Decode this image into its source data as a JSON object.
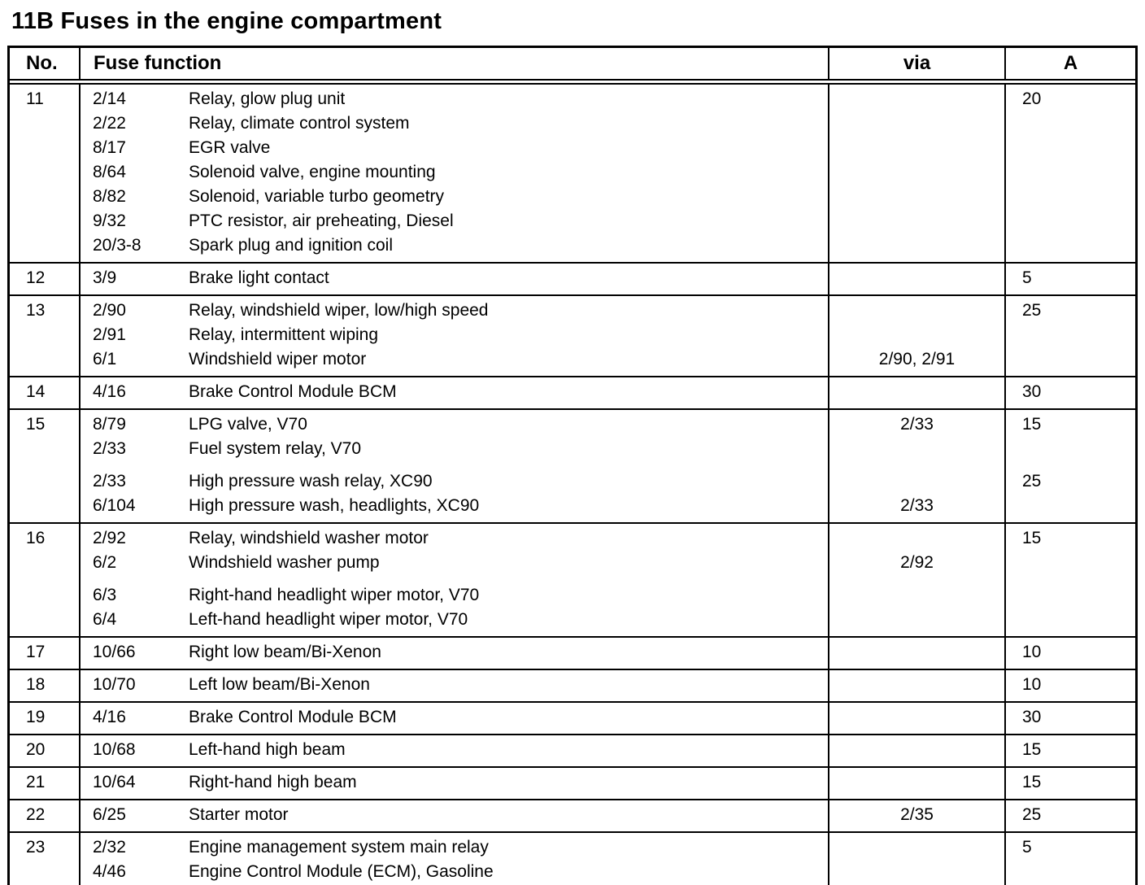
{
  "page": {
    "title": "11B Fuses in the engine compartment"
  },
  "table": {
    "headers": {
      "no": "No.",
      "function": "Fuse function",
      "via": "via",
      "amp": "A"
    },
    "rows": [
      {
        "no": "11",
        "entries": [
          {
            "code": "2/14",
            "desc": "Relay, glow plug unit",
            "via": "",
            "amp": "20"
          },
          {
            "code": "2/22",
            "desc": "Relay, climate control system",
            "via": "",
            "amp": ""
          },
          {
            "code": "8/17",
            "desc": "EGR valve",
            "via": "",
            "amp": ""
          },
          {
            "code": "8/64",
            "desc": "Solenoid valve, engine mounting",
            "via": "",
            "amp": ""
          },
          {
            "code": "8/82",
            "desc": "Solenoid, variable turbo geometry",
            "via": "",
            "amp": ""
          },
          {
            "code": "9/32",
            "desc": "PTC resistor, air preheating, Diesel",
            "via": "",
            "amp": ""
          },
          {
            "code": "20/3-8",
            "desc": "Spark plug and ignition coil",
            "via": "",
            "amp": ""
          }
        ]
      },
      {
        "no": "12",
        "entries": [
          {
            "code": "3/9",
            "desc": "Brake light contact",
            "via": "",
            "amp": "5"
          }
        ]
      },
      {
        "no": "13",
        "entries": [
          {
            "code": "2/90",
            "desc": "Relay, windshield wiper, low/high speed",
            "via": "",
            "amp": "25"
          },
          {
            "code": "2/91",
            "desc": "Relay, intermittent wiping",
            "via": "",
            "amp": ""
          },
          {
            "code": "6/1",
            "desc": "Windshield wiper motor",
            "via": "2/90, 2/91",
            "amp": ""
          }
        ]
      },
      {
        "no": "14",
        "entries": [
          {
            "code": "4/16",
            "desc": "Brake Control Module BCM",
            "via": "",
            "amp": "30"
          }
        ]
      },
      {
        "no": "15",
        "entries": [
          {
            "code": "8/79",
            "desc": "LPG valve, V70",
            "via": "2/33",
            "amp": "15"
          },
          {
            "code": "2/33",
            "desc": "Fuel system relay, V70",
            "via": "",
            "amp": ""
          },
          {
            "code": "2/33",
            "desc": "High pressure wash relay, XC90",
            "via": "",
            "amp": "25",
            "gap": true
          },
          {
            "code": "6/104",
            "desc": "High pressure wash, headlights, XC90",
            "via": "2/33",
            "amp": ""
          }
        ]
      },
      {
        "no": "16",
        "entries": [
          {
            "code": "2/92",
            "desc": "Relay, windshield washer motor",
            "via": "",
            "amp": "15"
          },
          {
            "code": "6/2",
            "desc": "Windshield washer pump",
            "via": "2/92",
            "amp": ""
          },
          {
            "code": "6/3",
            "desc": "Right-hand headlight wiper motor, V70",
            "via": "",
            "amp": "",
            "gap": true
          },
          {
            "code": "6/4",
            "desc": "Left-hand headlight wiper motor, V70",
            "via": "",
            "amp": ""
          }
        ]
      },
      {
        "no": "17",
        "entries": [
          {
            "code": "10/66",
            "desc": "Right low beam/Bi-Xenon",
            "via": "",
            "amp": "10"
          }
        ]
      },
      {
        "no": "18",
        "entries": [
          {
            "code": "10/70",
            "desc": "Left low beam/Bi-Xenon",
            "via": "",
            "amp": "10"
          }
        ]
      },
      {
        "no": "19",
        "entries": [
          {
            "code": "4/16",
            "desc": "Brake Control Module BCM",
            "via": "",
            "amp": "30"
          }
        ]
      },
      {
        "no": "20",
        "entries": [
          {
            "code": "10/68",
            "desc": "Left-hand high beam",
            "via": "",
            "amp": "15"
          }
        ]
      },
      {
        "no": "21",
        "entries": [
          {
            "code": "10/64",
            "desc": "Right-hand high beam",
            "via": "",
            "amp": "15"
          }
        ]
      },
      {
        "no": "22",
        "entries": [
          {
            "code": "6/25",
            "desc": "Starter motor",
            "via": "2/35",
            "amp": "25"
          }
        ]
      },
      {
        "no": "23",
        "entries": [
          {
            "code": "2/32",
            "desc": "Engine management system main relay",
            "via": "",
            "amp": "5"
          },
          {
            "code": "4/46",
            "desc": "Engine Control Module (ECM), Gasoline",
            "via": "",
            "amp": ""
          }
        ]
      }
    ]
  }
}
